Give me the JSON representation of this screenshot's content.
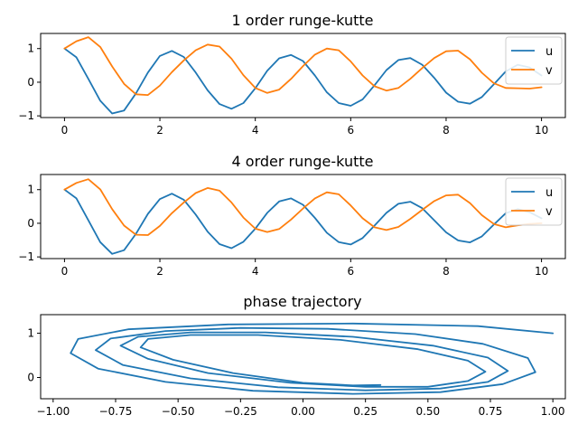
{
  "chart_data": [
    {
      "type": "line",
      "title": "1 order runge-kutte",
      "xlim": [
        -0.5,
        10.5
      ],
      "ylim": [
        -1.05,
        1.45
      ],
      "xticks": [
        0,
        2,
        4,
        6,
        8,
        10
      ],
      "xticklabels": [
        "0",
        "2",
        "4",
        "6",
        "8",
        "10"
      ],
      "yticks": [
        -1,
        0,
        1
      ],
      "yticklabels": [
        "−1",
        "0",
        "1"
      ],
      "legend": "top-right",
      "grid": false,
      "series": [
        {
          "name": "u",
          "color": "#1f77b4",
          "x": [
            0,
            0.25,
            0.5,
            0.75,
            1.0,
            1.25,
            1.5,
            1.75,
            2.0,
            2.25,
            2.5,
            2.75,
            3.0,
            3.25,
            3.5,
            3.75,
            4.0,
            4.25,
            4.5,
            4.75,
            5.0,
            5.25,
            5.5,
            5.75,
            6.0,
            6.25,
            6.5,
            6.75,
            7.0,
            7.25,
            7.5,
            7.75,
            8.0,
            8.25,
            8.5,
            8.75,
            9.0,
            9.25,
            9.5,
            9.75,
            10.0
          ],
          "y": [
            1.0,
            0.74,
            0.1,
            -0.55,
            -0.93,
            -0.84,
            -0.33,
            0.29,
            0.78,
            0.93,
            0.75,
            0.29,
            -0.24,
            -0.65,
            -0.79,
            -0.62,
            -0.18,
            0.34,
            0.71,
            0.81,
            0.63,
            0.2,
            -0.3,
            -0.62,
            -0.7,
            -0.51,
            -0.09,
            0.36,
            0.66,
            0.72,
            0.52,
            0.13,
            -0.31,
            -0.58,
            -0.64,
            -0.44,
            -0.06,
            0.32,
            0.52,
            0.44,
            0.2
          ]
        },
        {
          "name": "v",
          "color": "#ff7f0e",
          "x": [
            0,
            0.25,
            0.5,
            0.75,
            1.0,
            1.25,
            1.5,
            1.75,
            2.0,
            2.25,
            2.5,
            2.75,
            3.0,
            3.25,
            3.5,
            3.75,
            4.0,
            4.25,
            4.5,
            4.75,
            5.0,
            5.25,
            5.5,
            5.75,
            6.0,
            6.25,
            6.5,
            6.75,
            7.0,
            7.25,
            7.5,
            7.75,
            8.0,
            8.25,
            8.5,
            8.75,
            9.0,
            9.25,
            9.5,
            9.75,
            10.0
          ],
          "y": [
            1.0,
            1.22,
            1.34,
            1.05,
            0.47,
            -0.05,
            -0.36,
            -0.38,
            -0.1,
            0.3,
            0.65,
            0.95,
            1.12,
            1.06,
            0.7,
            0.21,
            -0.17,
            -0.32,
            -0.22,
            0.1,
            0.48,
            0.82,
            1.0,
            0.95,
            0.62,
            0.2,
            -0.12,
            -0.25,
            -0.17,
            0.1,
            0.42,
            0.72,
            0.92,
            0.94,
            0.68,
            0.28,
            -0.03,
            -0.17,
            -0.18,
            -0.19,
            -0.15
          ]
        }
      ]
    },
    {
      "type": "line",
      "title": "4 order runge-kutte",
      "xlim": [
        -0.5,
        10.5
      ],
      "ylim": [
        -1.05,
        1.45
      ],
      "xticks": [
        0,
        2,
        4,
        6,
        8,
        10
      ],
      "xticklabels": [
        "0",
        "2",
        "4",
        "6",
        "8",
        "10"
      ],
      "yticks": [
        -1,
        0,
        1
      ],
      "yticklabels": [
        "−1",
        "0",
        "1"
      ],
      "legend": "top-right",
      "grid": false,
      "series": [
        {
          "name": "u",
          "color": "#1f77b4",
          "x": [
            0,
            0.25,
            0.5,
            0.75,
            1.0,
            1.25,
            1.5,
            1.75,
            2.0,
            2.25,
            2.5,
            2.75,
            3.0,
            3.25,
            3.5,
            3.75,
            4.0,
            4.25,
            4.5,
            4.75,
            5.0,
            5.25,
            5.5,
            5.75,
            6.0,
            6.25,
            6.5,
            6.75,
            7.0,
            7.25,
            7.5,
            7.75,
            8.0,
            8.25,
            8.5,
            8.75,
            9.0,
            9.25,
            9.5,
            9.75,
            10.0
          ],
          "y": [
            1.0,
            0.74,
            0.09,
            -0.56,
            -0.91,
            -0.8,
            -0.31,
            0.28,
            0.72,
            0.88,
            0.7,
            0.26,
            -0.25,
            -0.62,
            -0.74,
            -0.55,
            -0.16,
            0.31,
            0.65,
            0.74,
            0.55,
            0.16,
            -0.28,
            -0.56,
            -0.63,
            -0.44,
            -0.07,
            0.31,
            0.58,
            0.64,
            0.45,
            0.09,
            -0.27,
            -0.51,
            -0.57,
            -0.39,
            -0.04,
            0.3,
            0.42,
            0.33,
            0.15
          ]
        },
        {
          "name": "v",
          "color": "#ff7f0e",
          "x": [
            0,
            0.25,
            0.5,
            0.75,
            1.0,
            1.25,
            1.5,
            1.75,
            2.0,
            2.25,
            2.5,
            2.75,
            3.0,
            3.25,
            3.5,
            3.75,
            4.0,
            4.25,
            4.5,
            4.75,
            5.0,
            5.25,
            5.5,
            5.75,
            6.0,
            6.25,
            6.5,
            6.75,
            7.0,
            7.25,
            7.5,
            7.75,
            8.0,
            8.25,
            8.5,
            8.75,
            9.0,
            9.25,
            9.5,
            9.75,
            10.0
          ],
          "y": [
            1.0,
            1.2,
            1.31,
            1.01,
            0.42,
            -0.07,
            -0.34,
            -0.35,
            -0.08,
            0.3,
            0.62,
            0.9,
            1.05,
            0.97,
            0.62,
            0.17,
            -0.16,
            -0.26,
            -0.17,
            0.11,
            0.44,
            0.74,
            0.92,
            0.86,
            0.53,
            0.15,
            -0.12,
            -0.2,
            -0.11,
            0.13,
            0.4,
            0.66,
            0.83,
            0.85,
            0.6,
            0.24,
            -0.02,
            -0.12,
            -0.06,
            -0.02,
            0.0
          ]
        }
      ]
    },
    {
      "type": "line",
      "title": "phase trajectory",
      "xlim": [
        -1.05,
        1.05
      ],
      "ylim": [
        -0.48,
        1.42
      ],
      "xticks": [
        -1.0,
        -0.75,
        -0.5,
        -0.25,
        0.0,
        0.25,
        0.5,
        0.75,
        1.0
      ],
      "xticklabels": [
        "−1.00",
        "−0.75",
        "−0.50",
        "−0.25",
        "0.00",
        "0.25",
        "0.50",
        "0.75",
        "1.00"
      ],
      "yticks": [
        0,
        1
      ],
      "yticklabels": [
        "0",
        "1"
      ],
      "grid": false,
      "series": [
        {
          "color": "#1f77b4",
          "x": [
            1.0,
            0.7,
            0.2,
            -0.3,
            -0.7,
            -0.9,
            -0.93,
            -0.82,
            -0.55,
            -0.2,
            0.2,
            0.55,
            0.8,
            0.93,
            0.9,
            0.72,
            0.45,
            0.1,
            -0.25,
            -0.55,
            -0.77,
            -0.83,
            -0.72,
            -0.45,
            -0.1,
            0.25,
            0.55,
            0.74,
            0.82,
            0.74,
            0.52,
            0.2,
            -0.15,
            -0.45,
            -0.66,
            -0.73,
            -0.62,
            -0.38,
            -0.05,
            0.25,
            0.5,
            0.66,
            0.73,
            0.66,
            0.46,
            0.15,
            -0.18,
            -0.45,
            -0.62,
            -0.65,
            -0.52,
            -0.28,
            0.0,
            0.2,
            0.31
          ],
          "y": [
            1.0,
            1.16,
            1.22,
            1.2,
            1.09,
            0.87,
            0.55,
            0.2,
            -0.1,
            -0.3,
            -0.37,
            -0.33,
            -0.15,
            0.12,
            0.44,
            0.76,
            0.98,
            1.1,
            1.12,
            1.05,
            0.88,
            0.62,
            0.28,
            -0.02,
            -0.22,
            -0.29,
            -0.25,
            -0.1,
            0.15,
            0.45,
            0.72,
            0.92,
            1.02,
            1.02,
            0.92,
            0.72,
            0.42,
            0.1,
            -0.12,
            -0.21,
            -0.21,
            -0.08,
            0.13,
            0.38,
            0.64,
            0.85,
            0.96,
            0.96,
            0.87,
            0.68,
            0.4,
            0.1,
            -0.12,
            -0.18,
            -0.17
          ]
        }
      ]
    }
  ]
}
